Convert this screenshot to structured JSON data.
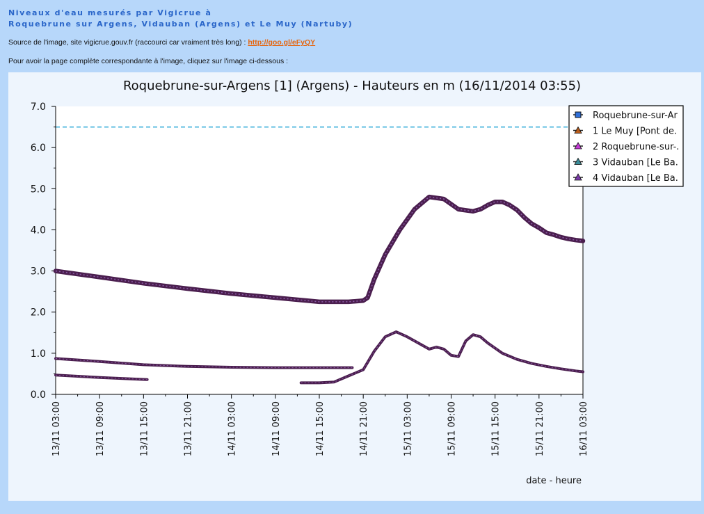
{
  "header": {
    "title_line1": "Niveaux d'eau mesurés par Vigicrue à",
    "title_line2": "Roquebrune sur Argens, Vidauban (Argens) et Le Muy (Nartuby)",
    "source_text": "Source de l'image, site vigicrue.gouv.fr (raccourci car vraiment très long) : ",
    "source_link": "http://goo.gl/eFyQY",
    "info_text": "Pour avoir la page complète correspondante à l'image, cliquez sur l'image ci-dessous :"
  },
  "colors": {
    "page_bg": "#b7d7fa",
    "chart_bg": "#ffffff",
    "reference_line": "#2aa7d6",
    "series_line": "#4b1f4f",
    "link": "#e5650e"
  },
  "chart_data": {
    "type": "line",
    "title": "Roquebrune-sur-Argens [1] (Argens) - Hauteurs en m (16/11/2014 03:55)",
    "xlabel": "date - heure",
    "ylabel": "",
    "ylim": [
      0,
      7
    ],
    "xlim_hours": [
      0,
      72
    ],
    "x_ticks": [
      "13/11 03:00",
      "13/11 09:00",
      "13/11 15:00",
      "13/11 21:00",
      "14/11 03:00",
      "14/11 09:00",
      "14/11 15:00",
      "14/11 21:00",
      "15/11 03:00",
      "15/11 09:00",
      "15/11 15:00",
      "15/11 21:00",
      "16/11 03:00"
    ],
    "y_ticks": [
      "0.0",
      "1.0",
      "2.0",
      "3.0",
      "4.0",
      "5.0",
      "6.0",
      "7.0"
    ],
    "grid": false,
    "legend_position": "top-right",
    "legend": [
      {
        "label": "Roquebrune-sur-Ar",
        "color": "#2f6fd8",
        "marker": "square"
      },
      {
        "label": "1 Le Muy [Pont de.",
        "color": "#b55a1a",
        "marker": "triangle"
      },
      {
        "label": "2 Roquebrune-sur-.",
        "color": "#c63ad8",
        "marker": "triangle"
      },
      {
        "label": "3 Vidauban [Le Ba.",
        "color": "#3a8d9a",
        "marker": "triangle"
      },
      {
        "label": "4 Vidauban [Le Ba.",
        "color": "#7a3aa8",
        "marker": "triangle"
      }
    ],
    "reference_level": 6.5,
    "series": [
      {
        "name": "Roquebrune-sur-Ar",
        "x": [
          0,
          6,
          12,
          18,
          24,
          30,
          36,
          40,
          42,
          42.6,
          43.5,
          45,
          47,
          49,
          51,
          53,
          55,
          57,
          58,
          59,
          60,
          61,
          62,
          63,
          64,
          65,
          66,
          67,
          68,
          69,
          70,
          71,
          72
        ],
        "values": [
          3.0,
          2.85,
          2.7,
          2.57,
          2.45,
          2.35,
          2.25,
          2.25,
          2.28,
          2.35,
          2.8,
          3.4,
          4.0,
          4.5,
          4.8,
          4.75,
          4.5,
          4.45,
          4.5,
          4.6,
          4.68,
          4.68,
          4.6,
          4.48,
          4.3,
          4.15,
          4.05,
          3.93,
          3.88,
          3.82,
          3.78,
          3.75,
          3.73
        ]
      },
      {
        "name": "1 Le Muy [Pont de.",
        "x": [
          0,
          6,
          12,
          18,
          24,
          30,
          36,
          40.5
        ],
        "values": [
          0.87,
          0.8,
          0.72,
          0.68,
          0.66,
          0.65,
          0.65,
          0.65
        ]
      },
      {
        "name": "4 Vidauban [Le Ba.",
        "x": [
          0,
          6,
          12.5
        ],
        "values": [
          0.47,
          0.41,
          0.36
        ]
      },
      {
        "name": "3 Vidauban [Le Ba.",
        "x": [
          33.5,
          36,
          38,
          40,
          42,
          43.5,
          45,
          46.5,
          48,
          50,
          51,
          52,
          53,
          54,
          55,
          56,
          57,
          58,
          59,
          61,
          63,
          65,
          67,
          69,
          71,
          72
        ],
        "values": [
          0.28,
          0.28,
          0.3,
          0.45,
          0.6,
          1.05,
          1.4,
          1.52,
          1.4,
          1.2,
          1.1,
          1.15,
          1.1,
          0.95,
          0.92,
          1.3,
          1.45,
          1.4,
          1.25,
          1.0,
          0.85,
          0.75,
          0.68,
          0.62,
          0.57,
          0.55
        ]
      }
    ]
  }
}
